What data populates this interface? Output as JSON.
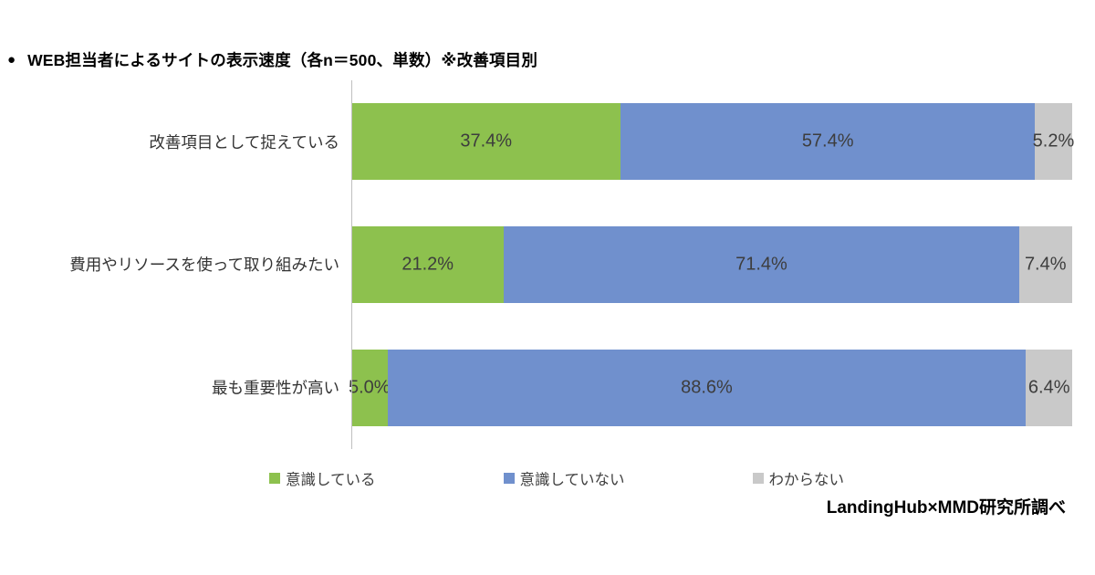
{
  "title_bullet": "●",
  "source": "LandingHub×MMD研究所調べ",
  "chart_data": {
    "type": "bar",
    "orientation": "horizontal",
    "stacked": true,
    "title": "WEB担当者によるサイトの表示速度（各n＝500、単数）※改善項目別",
    "categories": [
      "改善項目として捉えている",
      "費用やリソースを使って取り組みたい",
      "最も重要性が高い"
    ],
    "series": [
      {
        "name": "意識している",
        "color": "#8dc14e",
        "values": [
          37.4,
          21.2,
          5.0
        ]
      },
      {
        "name": "意識していない",
        "color": "#7090cd",
        "values": [
          57.4,
          71.4,
          88.6
        ]
      },
      {
        "name": "わからない",
        "color": "#c9c9c9",
        "values": [
          5.2,
          7.4,
          6.4
        ]
      }
    ],
    "value_format": "percent",
    "value_suffix": "%",
    "xlim": [
      0,
      100
    ],
    "grid": false,
    "legend_position": "bottom"
  }
}
